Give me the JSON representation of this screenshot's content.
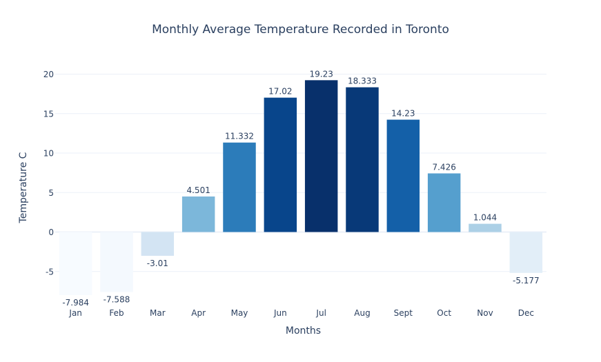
{
  "chart_data": {
    "type": "bar",
    "title": "Monthly Average Temperature Recorded in Toronto",
    "xlabel": "Months",
    "ylabel": "Temperature C",
    "categories": [
      "Jan",
      "Feb",
      "Mar",
      "Apr",
      "May",
      "Jun",
      "Jul",
      "Aug",
      "Sept",
      "Oct",
      "Nov",
      "Dec"
    ],
    "values": [
      -7.984,
      -7.588,
      -3.01,
      4.501,
      11.332,
      17.02,
      19.23,
      18.333,
      14.23,
      7.426,
      1.044,
      -5.177
    ],
    "value_labels": [
      "-7.984",
      "-7.588",
      "-3.01",
      "4.501",
      "11.332",
      "17.02",
      "19.23",
      "18.333",
      "14.23",
      "7.426",
      "1.044",
      "-5.177"
    ],
    "yticks": [
      -5,
      0,
      5,
      10,
      15,
      20
    ],
    "ytick_labels": [
      "-5",
      "0",
      "5",
      "10",
      "15",
      "20"
    ],
    "ylim": [
      -8.5,
      21.2
    ],
    "grid": true,
    "colorscale": "Blues",
    "color_range": [
      -7.984,
      19.23
    ],
    "color_stops": [
      [
        0.0,
        "#f7fbff"
      ],
      [
        0.125,
        "#deebf7"
      ],
      [
        0.25,
        "#c6dbef"
      ],
      [
        0.375,
        "#9ecae1"
      ],
      [
        0.5,
        "#6baed6"
      ],
      [
        0.625,
        "#4292c6"
      ],
      [
        0.75,
        "#2171b5"
      ],
      [
        0.875,
        "#08519c"
      ],
      [
        1.0,
        "#08306b"
      ]
    ],
    "text_color": "#2a3f5f",
    "grid_color": "#ebf0f8"
  }
}
